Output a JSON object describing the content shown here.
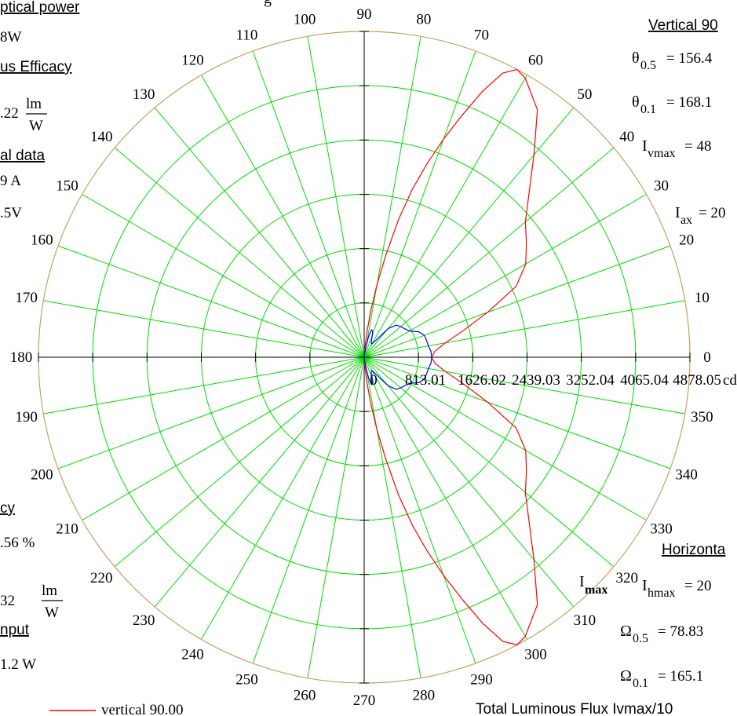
{
  "colors": {
    "grid": "#00dd00",
    "axis": "#000000",
    "outer_circle": "#c8a060",
    "vertical_series": "#ff0000",
    "horizontal_series": "#0000ff",
    "background": "#ffffff"
  },
  "left_panel": {
    "optical_power_heading": "ptical power",
    "optical_power_value": "8W",
    "efficacy_heading": "us Efficacy",
    "efficacy_value": ".22",
    "efficacy_unit_num": "lm",
    "efficacy_unit_den": "W",
    "electrical_heading": "al data",
    "current_value": "9  A",
    "voltage_value": ".5V",
    "efficiency_heading": "cy",
    "efficiency_value": ".56  %",
    "lm_value": "32",
    "lm_unit_num": "lm",
    "lm_unit_den": "W",
    "input_heading": "nput",
    "input_value": "1.2    W",
    "legend_label": "vertical  90.00"
  },
  "top_center_fragment": "g",
  "right_panel": {
    "vertical_heading": "Vertical 90",
    "theta05_label": "θ",
    "theta05_sub": "0.5",
    "theta05_value": "= 156.4",
    "theta01_label": "θ",
    "theta01_sub": "0.1",
    "theta01_value": "= 168.1",
    "ivmax_label": "I",
    "ivmax_sub": "vmax",
    "ivmax_value": "= 48",
    "iax_label": "I",
    "iax_sub": "ax",
    "iax_value": "= 20",
    "horizontal_heading": "Horizonta",
    "imax_label": "I",
    "imax_sub": "max",
    "ihmax_label": "I",
    "ihmax_sub": "hmax",
    "ihmax_value": "= 20",
    "omega05_label": "Ω",
    "omega05_sub": "0.5",
    "omega05_value": "= 78.83",
    "omega01_label": "Ω",
    "omega01_sub": "0.1",
    "omega01_value": "= 165.1",
    "total_flux_label": "Total Luminous Flux   Ivmax/10"
  },
  "chart_data": {
    "type": "polar",
    "angle_unit": "degrees",
    "angle_labels": [
      "0",
      "10",
      "20",
      "30",
      "40",
      "50",
      "60",
      "70",
      "80",
      "90",
      "100",
      "110",
      "120",
      "130",
      "140",
      "150",
      "160",
      "170",
      "180",
      "190",
      "200",
      "210",
      "220",
      "230",
      "240",
      "250",
      "260",
      "270",
      "280",
      "290",
      "300",
      "310",
      "320",
      "330",
      "340",
      "350"
    ],
    "radial_tick_labels": [
      "0",
      "813.01",
      "1626.02",
      "2439.03",
      "3252.04",
      "4065.04",
      "4878.05"
    ],
    "radial_unit": "cd",
    "rmax": 4878.05,
    "grid": true,
    "series": [
      {
        "name": "vertical  90.00",
        "color": "#ff0000",
        "points": [
          [
            0,
            1011
          ],
          [
            5,
            1065
          ],
          [
            10,
            1234
          ],
          [
            15,
            1535
          ],
          [
            20,
            1966
          ],
          [
            25,
            2512
          ],
          [
            30,
            2793
          ],
          [
            35,
            2966
          ],
          [
            40,
            3151
          ],
          [
            45,
            3494
          ],
          [
            50,
            3955
          ],
          [
            55,
            4523
          ],
          [
            60,
            4825
          ],
          [
            62,
            4878
          ],
          [
            64,
            4734
          ],
          [
            66,
            4358
          ],
          [
            68,
            3901
          ],
          [
            70,
            3475
          ],
          [
            72,
            3048
          ],
          [
            74,
            2617
          ],
          [
            76,
            2122
          ],
          [
            78,
            1566
          ],
          [
            80,
            1102
          ],
          [
            82,
            685
          ],
          [
            84,
            341
          ],
          [
            86,
            136
          ],
          [
            88,
            34
          ],
          [
            90,
            0
          ],
          [
            270,
            0
          ],
          [
            272,
            34
          ],
          [
            274,
            136
          ],
          [
            276,
            341
          ],
          [
            278,
            685
          ],
          [
            280,
            1102
          ],
          [
            282,
            1566
          ],
          [
            284,
            2122
          ],
          [
            286,
            2617
          ],
          [
            288,
            3048
          ],
          [
            290,
            3475
          ],
          [
            292,
            3901
          ],
          [
            294,
            4358
          ],
          [
            296,
            4734
          ],
          [
            298,
            4878
          ],
          [
            300,
            4825
          ],
          [
            305,
            4523
          ],
          [
            310,
            3955
          ],
          [
            315,
            3494
          ],
          [
            320,
            3151
          ],
          [
            325,
            2966
          ],
          [
            330,
            2793
          ],
          [
            335,
            2512
          ],
          [
            340,
            1966
          ],
          [
            345,
            1535
          ],
          [
            350,
            1234
          ],
          [
            355,
            1065
          ],
          [
            360,
            1011
          ]
        ]
      },
      {
        "name": "",
        "color": "#0000ff",
        "points": [
          [
            0,
            1011
          ],
          [
            5,
            1004
          ],
          [
            10,
            976
          ],
          [
            15,
            967
          ],
          [
            20,
            959
          ],
          [
            25,
            902
          ],
          [
            30,
            786
          ],
          [
            35,
            742
          ],
          [
            40,
            713
          ],
          [
            45,
            679
          ],
          [
            50,
            558
          ],
          [
            55,
            325
          ],
          [
            60,
            229
          ],
          [
            65,
            248
          ],
          [
            70,
            363
          ],
          [
            72,
            410
          ],
          [
            75,
            426
          ],
          [
            78,
            318
          ],
          [
            80,
            168
          ],
          [
            85,
            29
          ],
          [
            90,
            0
          ],
          [
            270,
            0
          ],
          [
            275,
            29
          ],
          [
            280,
            168
          ],
          [
            282,
            318
          ],
          [
            285,
            426
          ],
          [
            288,
            410
          ],
          [
            290,
            363
          ],
          [
            295,
            248
          ],
          [
            300,
            229
          ],
          [
            305,
            325
          ],
          [
            310,
            558
          ],
          [
            315,
            679
          ],
          [
            320,
            713
          ],
          [
            325,
            742
          ],
          [
            330,
            786
          ],
          [
            335,
            902
          ],
          [
            340,
            959
          ],
          [
            345,
            967
          ],
          [
            350,
            976
          ],
          [
            355,
            1004
          ],
          [
            360,
            1011
          ]
        ]
      }
    ]
  }
}
